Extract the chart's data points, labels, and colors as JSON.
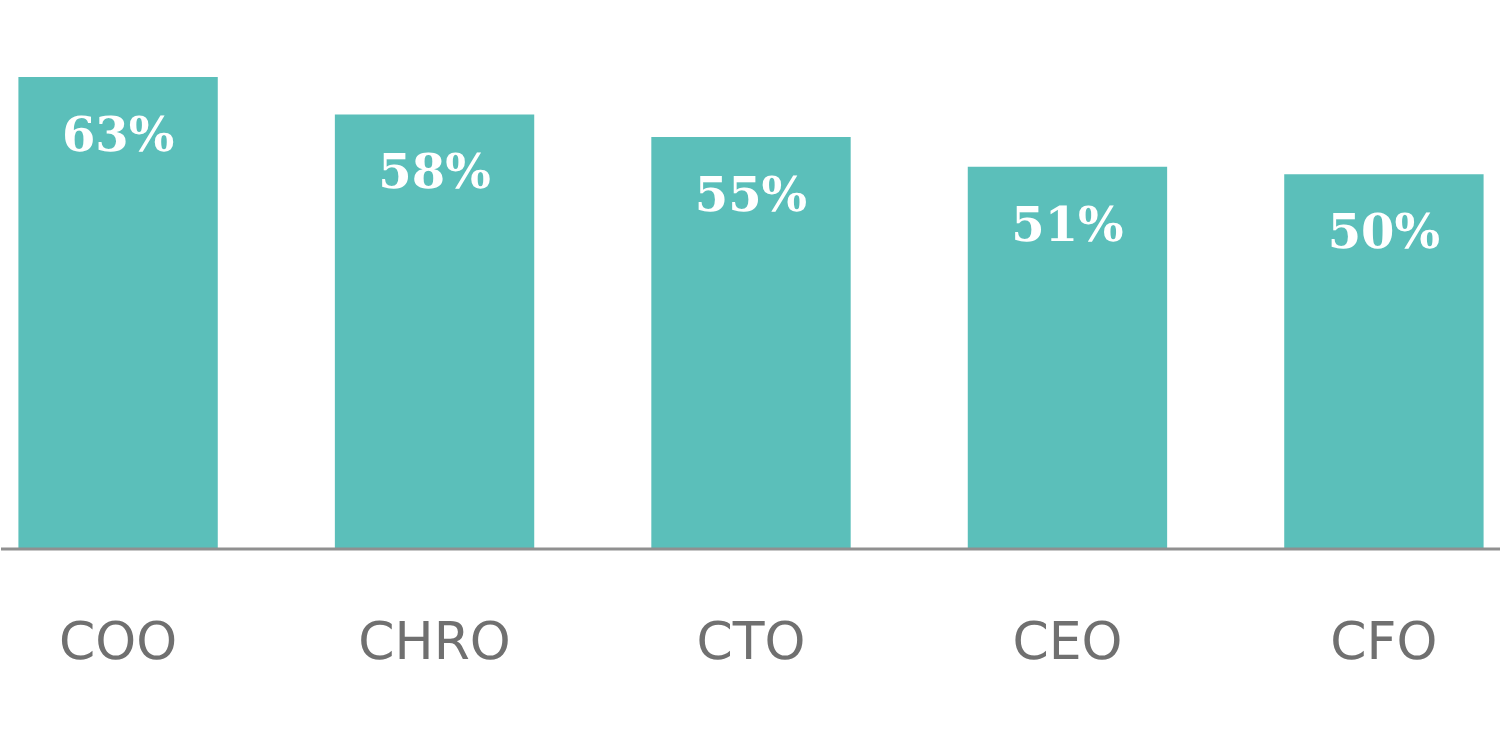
{
  "chart_data": {
    "type": "bar",
    "categories": [
      "COO",
      "CHRO",
      "CTO",
      "CEO",
      "CFO"
    ],
    "values": [
      63,
      58,
      55,
      51,
      50
    ],
    "value_labels": [
      "63%",
      "58%",
      "55%",
      "51%",
      "50%"
    ],
    "color": "#5bbfba",
    "tick_labels": "x",
    "grid": false
  }
}
